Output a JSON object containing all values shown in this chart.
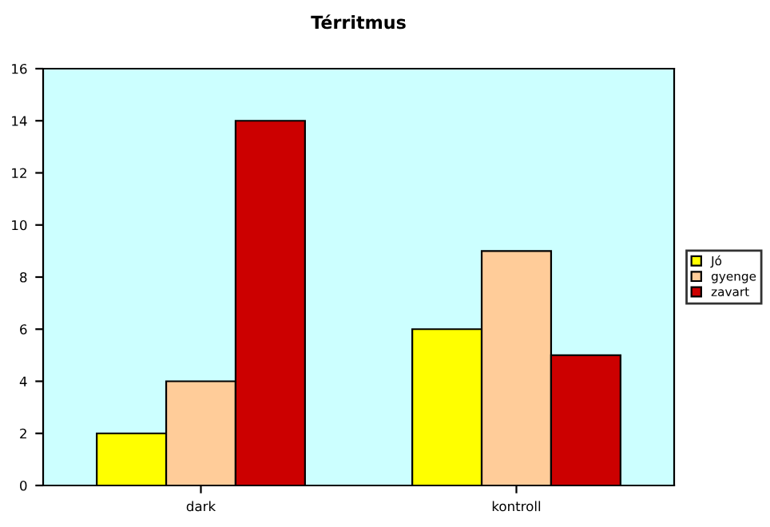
{
  "chart_data": {
    "type": "bar",
    "title": "Térritmus",
    "categories": [
      "dark",
      "kontroll"
    ],
    "series": [
      {
        "name": "Jó",
        "color": "#ffff00",
        "values": [
          2,
          6
        ]
      },
      {
        "name": "gyenge",
        "color": "#ffcc99",
        "values": [
          4,
          9
        ]
      },
      {
        "name": "zavart",
        "color": "#cc0000",
        "values": [
          14,
          5
        ]
      }
    ],
    "ylim": [
      0,
      16
    ],
    "yticks": [
      0,
      2,
      4,
      6,
      8,
      10,
      12,
      14,
      16
    ],
    "grid": false,
    "legend": "right"
  }
}
